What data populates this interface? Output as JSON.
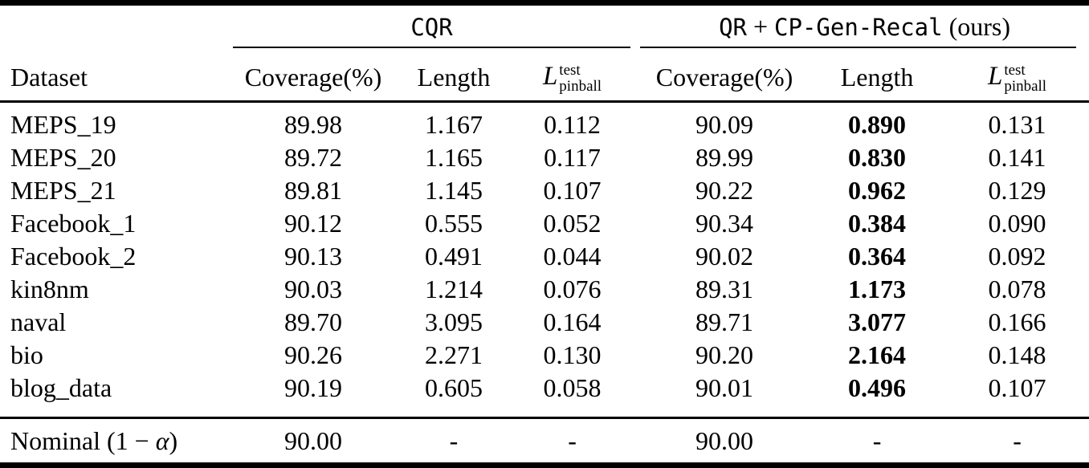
{
  "page": {
    "background": "#ffffff",
    "text_color": "#000000",
    "rule_color": "#000000"
  },
  "table": {
    "groups": {
      "cqr": {
        "label": "CQR"
      },
      "ours": {
        "qr": "QR",
        "plus": "+",
        "cpgen": "CP-Gen-Recal",
        "suffix": "(ours)"
      }
    },
    "columns": {
      "dataset": "Dataset",
      "coverage": "Coverage(%)",
      "length": "Length",
      "pinball": {
        "base": "L",
        "sup": "test",
        "sub": "pinball"
      }
    },
    "rows": [
      {
        "dataset": "MEPS_19",
        "cqr": {
          "coverage": "89.98",
          "length": "1.167",
          "pinball": "0.112"
        },
        "ours": {
          "coverage": "90.09",
          "length": "0.890",
          "pinball": "0.131"
        }
      },
      {
        "dataset": "MEPS_20",
        "cqr": {
          "coverage": "89.72",
          "length": "1.165",
          "pinball": "0.117"
        },
        "ours": {
          "coverage": "89.99",
          "length": "0.830",
          "pinball": "0.141"
        }
      },
      {
        "dataset": "MEPS_21",
        "cqr": {
          "coverage": "89.81",
          "length": "1.145",
          "pinball": "0.107"
        },
        "ours": {
          "coverage": "90.22",
          "length": "0.962",
          "pinball": "0.129"
        }
      },
      {
        "dataset": "Facebook_1",
        "cqr": {
          "coverage": "90.12",
          "length": "0.555",
          "pinball": "0.052"
        },
        "ours": {
          "coverage": "90.34",
          "length": "0.384",
          "pinball": "0.090"
        }
      },
      {
        "dataset": "Facebook_2",
        "cqr": {
          "coverage": "90.13",
          "length": "0.491",
          "pinball": "0.044"
        },
        "ours": {
          "coverage": "90.02",
          "length": "0.364",
          "pinball": "0.092"
        }
      },
      {
        "dataset": "kin8nm",
        "cqr": {
          "coverage": "90.03",
          "length": "1.214",
          "pinball": "0.076"
        },
        "ours": {
          "coverage": "89.31",
          "length": "1.173",
          "pinball": "0.078"
        }
      },
      {
        "dataset": "naval",
        "cqr": {
          "coverage": "89.70",
          "length": "3.095",
          "pinball": "0.164"
        },
        "ours": {
          "coverage": "89.71",
          "length": "3.077",
          "pinball": "0.166"
        }
      },
      {
        "dataset": "bio",
        "cqr": {
          "coverage": "90.26",
          "length": "2.271",
          "pinball": "0.130"
        },
        "ours": {
          "coverage": "90.20",
          "length": "2.164",
          "pinball": "0.148"
        }
      },
      {
        "dataset": "blog_data",
        "cqr": {
          "coverage": "90.19",
          "length": "0.605",
          "pinball": "0.058"
        },
        "ours": {
          "coverage": "90.01",
          "length": "0.496",
          "pinball": "0.107"
        }
      }
    ],
    "footer": {
      "label_prefix": "Nominal (1 − ",
      "label_alpha": "α",
      "label_suffix": ")",
      "cqr": {
        "coverage": "90.00",
        "length": "-",
        "pinball": "-"
      },
      "ours": {
        "coverage": "90.00",
        "length": "-",
        "pinball": "-"
      }
    }
  }
}
